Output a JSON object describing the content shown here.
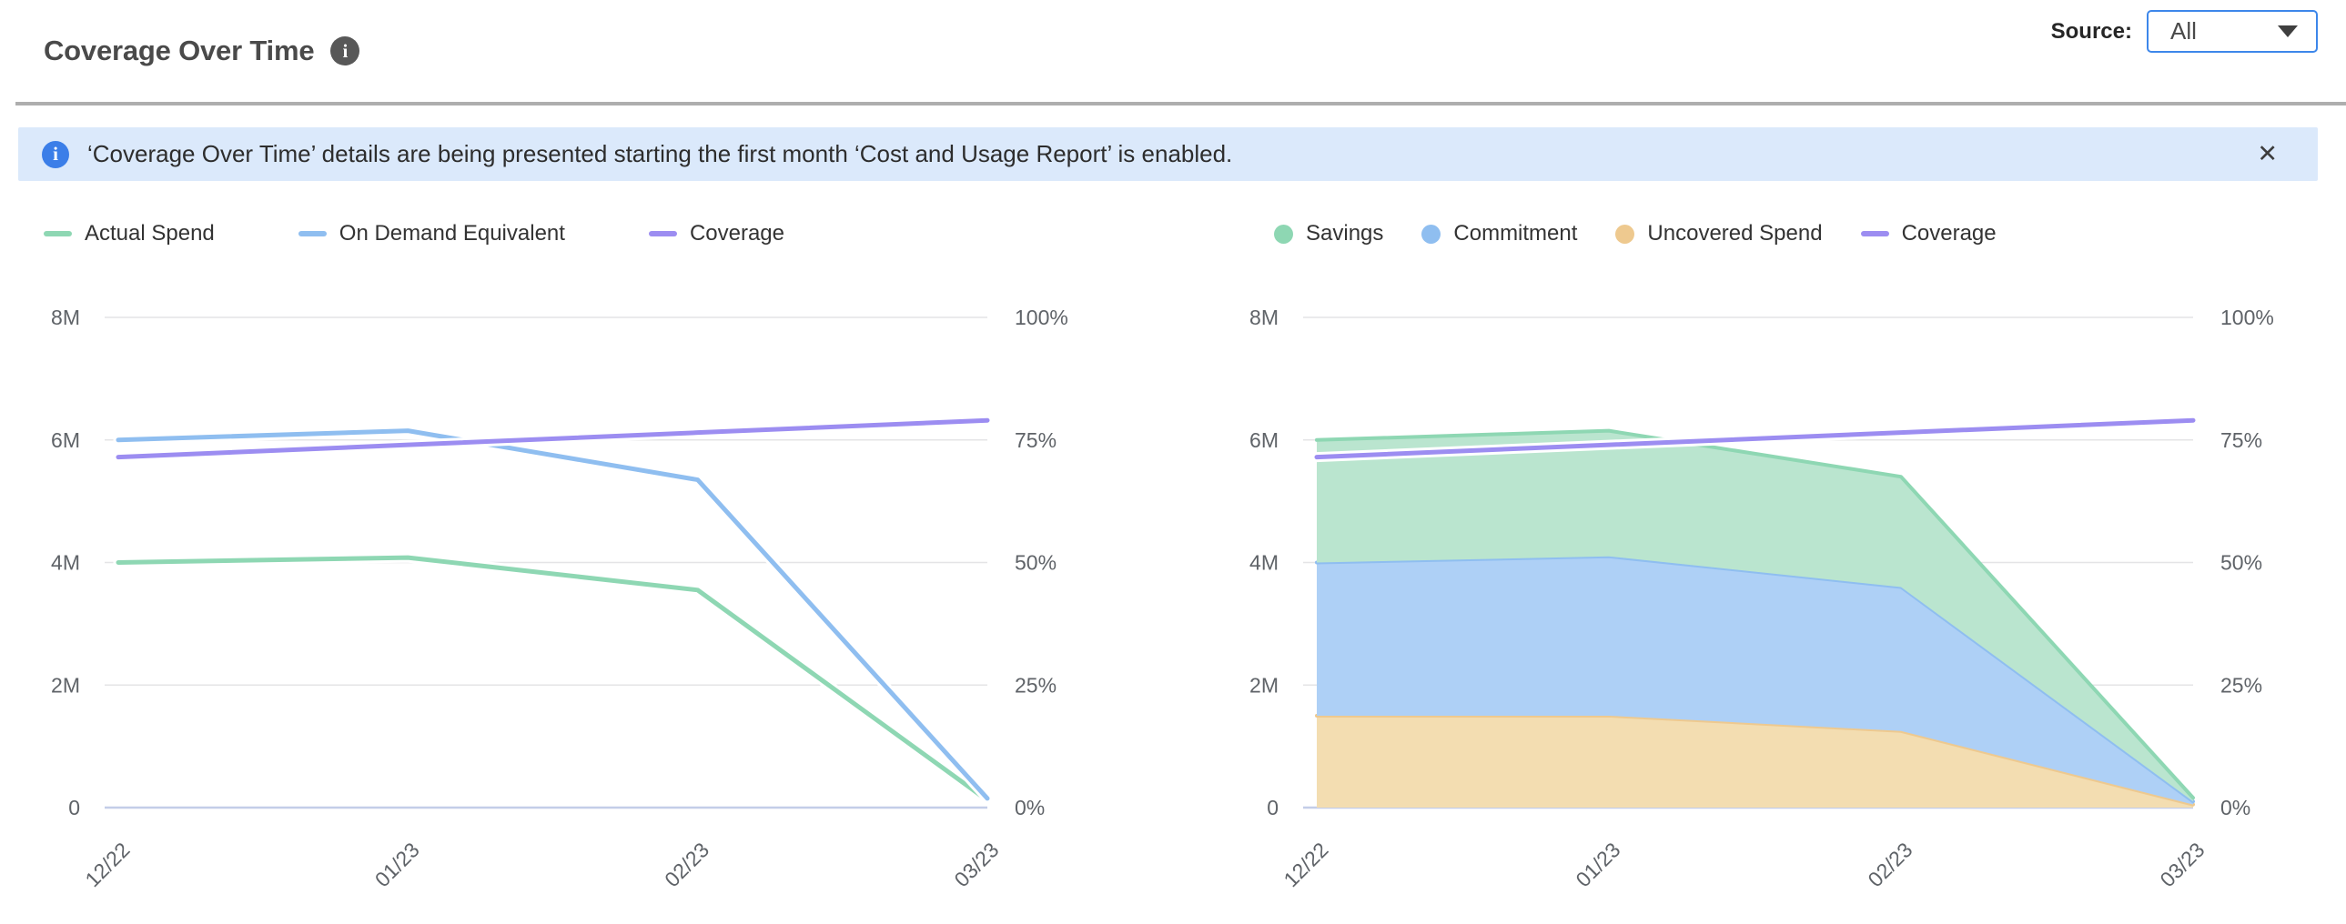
{
  "header": {
    "title": "Coverage Over Time",
    "source_label": "Source:",
    "source_value": "All"
  },
  "banner": {
    "text": "‘Coverage Over Time’ details are being presented starting the first month ‘Cost and Usage Report’ is enabled.",
    "close_glyph": "✕"
  },
  "colors": {
    "green": "#8ed7b3",
    "blue": "#8fbef0",
    "orange": "#eec98f",
    "purple": "#9c8df1",
    "green_fill": "#bae5cf",
    "blue_fill": "#aed0f6",
    "orange_fill": "#f3ddb1",
    "gridline": "#e4e4e6",
    "baseline": "#c3cde8",
    "banner_bg": "#dbe9fb",
    "accent_blue": "#3d87ea"
  },
  "chart_data": [
    {
      "type": "line",
      "title": "",
      "x": [
        "12/22",
        "01/23",
        "02/23",
        "03/23"
      ],
      "xlabel": "",
      "ylabel": "",
      "grid": true,
      "legend_position": "top-left",
      "left_axis": {
        "max": 8000000,
        "tick_values": [
          8000000,
          6000000,
          4000000,
          2000000,
          0
        ],
        "tick_labels": [
          "8M",
          "6M",
          "4M",
          "2M",
          "0"
        ]
      },
      "right_axis": {
        "max": 100,
        "tick_values": [
          100,
          75,
          50,
          25,
          0
        ],
        "tick_labels": [
          "100%",
          "75%",
          "50%",
          "25%",
          "0%"
        ]
      },
      "legend_order": [
        "Actual Spend",
        "On Demand Equivalent",
        "Coverage"
      ],
      "series": [
        {
          "name": "Actual Spend",
          "axis": "left",
          "marker": "line",
          "color": "#8ed7b3",
          "values": [
            4000000,
            4080000,
            3550000,
            120000
          ]
        },
        {
          "name": "On Demand Equivalent",
          "axis": "left",
          "marker": "line",
          "color": "#8fbef0",
          "values": [
            6000000,
            6150000,
            5350000,
            150000
          ]
        },
        {
          "name": "Coverage",
          "axis": "right",
          "marker": "line",
          "color": "#9c8df1",
          "values_pct": [
            71.5,
            74,
            76.5,
            79
          ]
        }
      ]
    },
    {
      "type": "area",
      "stacked": true,
      "title": "",
      "x": [
        "12/22",
        "01/23",
        "02/23",
        "03/23"
      ],
      "xlabel": "",
      "ylabel": "",
      "grid": true,
      "legend_position": "top-left",
      "left_axis": {
        "max": 8000000,
        "tick_values": [
          8000000,
          6000000,
          4000000,
          2000000,
          0
        ],
        "tick_labels": [
          "8M",
          "6M",
          "4M",
          "2M",
          "0"
        ]
      },
      "right_axis": {
        "max": 100,
        "tick_values": [
          100,
          75,
          50,
          25,
          0
        ],
        "tick_labels": [
          "100%",
          "75%",
          "50%",
          "25%",
          "0%"
        ]
      },
      "legend_order": [
        "Savings",
        "Commitment",
        "Uncovered Spend",
        "Coverage"
      ],
      "stack_order": [
        "Uncovered Spend",
        "Commitment",
        "Savings"
      ],
      "series": [
        {
          "name": "Savings",
          "axis": "left",
          "marker": "dot",
          "color": "#8ed7b3",
          "fill": "#bae5cf",
          "values": [
            2000000,
            2050000,
            1800000,
            60000
          ]
        },
        {
          "name": "Commitment",
          "axis": "left",
          "marker": "dot",
          "color": "#8fbef0",
          "fill": "#aed0f6",
          "values": [
            2500000,
            2600000,
            2350000,
            50000
          ]
        },
        {
          "name": "Uncovered Spend",
          "axis": "left",
          "marker": "dot",
          "color": "#eec98f",
          "fill": "#f3ddb1",
          "values": [
            1500000,
            1500000,
            1250000,
            50000
          ]
        },
        {
          "name": "Coverage",
          "axis": "right",
          "marker": "line",
          "color": "#9c8df1",
          "values_pct": [
            71.5,
            74,
            76.5,
            79
          ]
        }
      ]
    }
  ]
}
